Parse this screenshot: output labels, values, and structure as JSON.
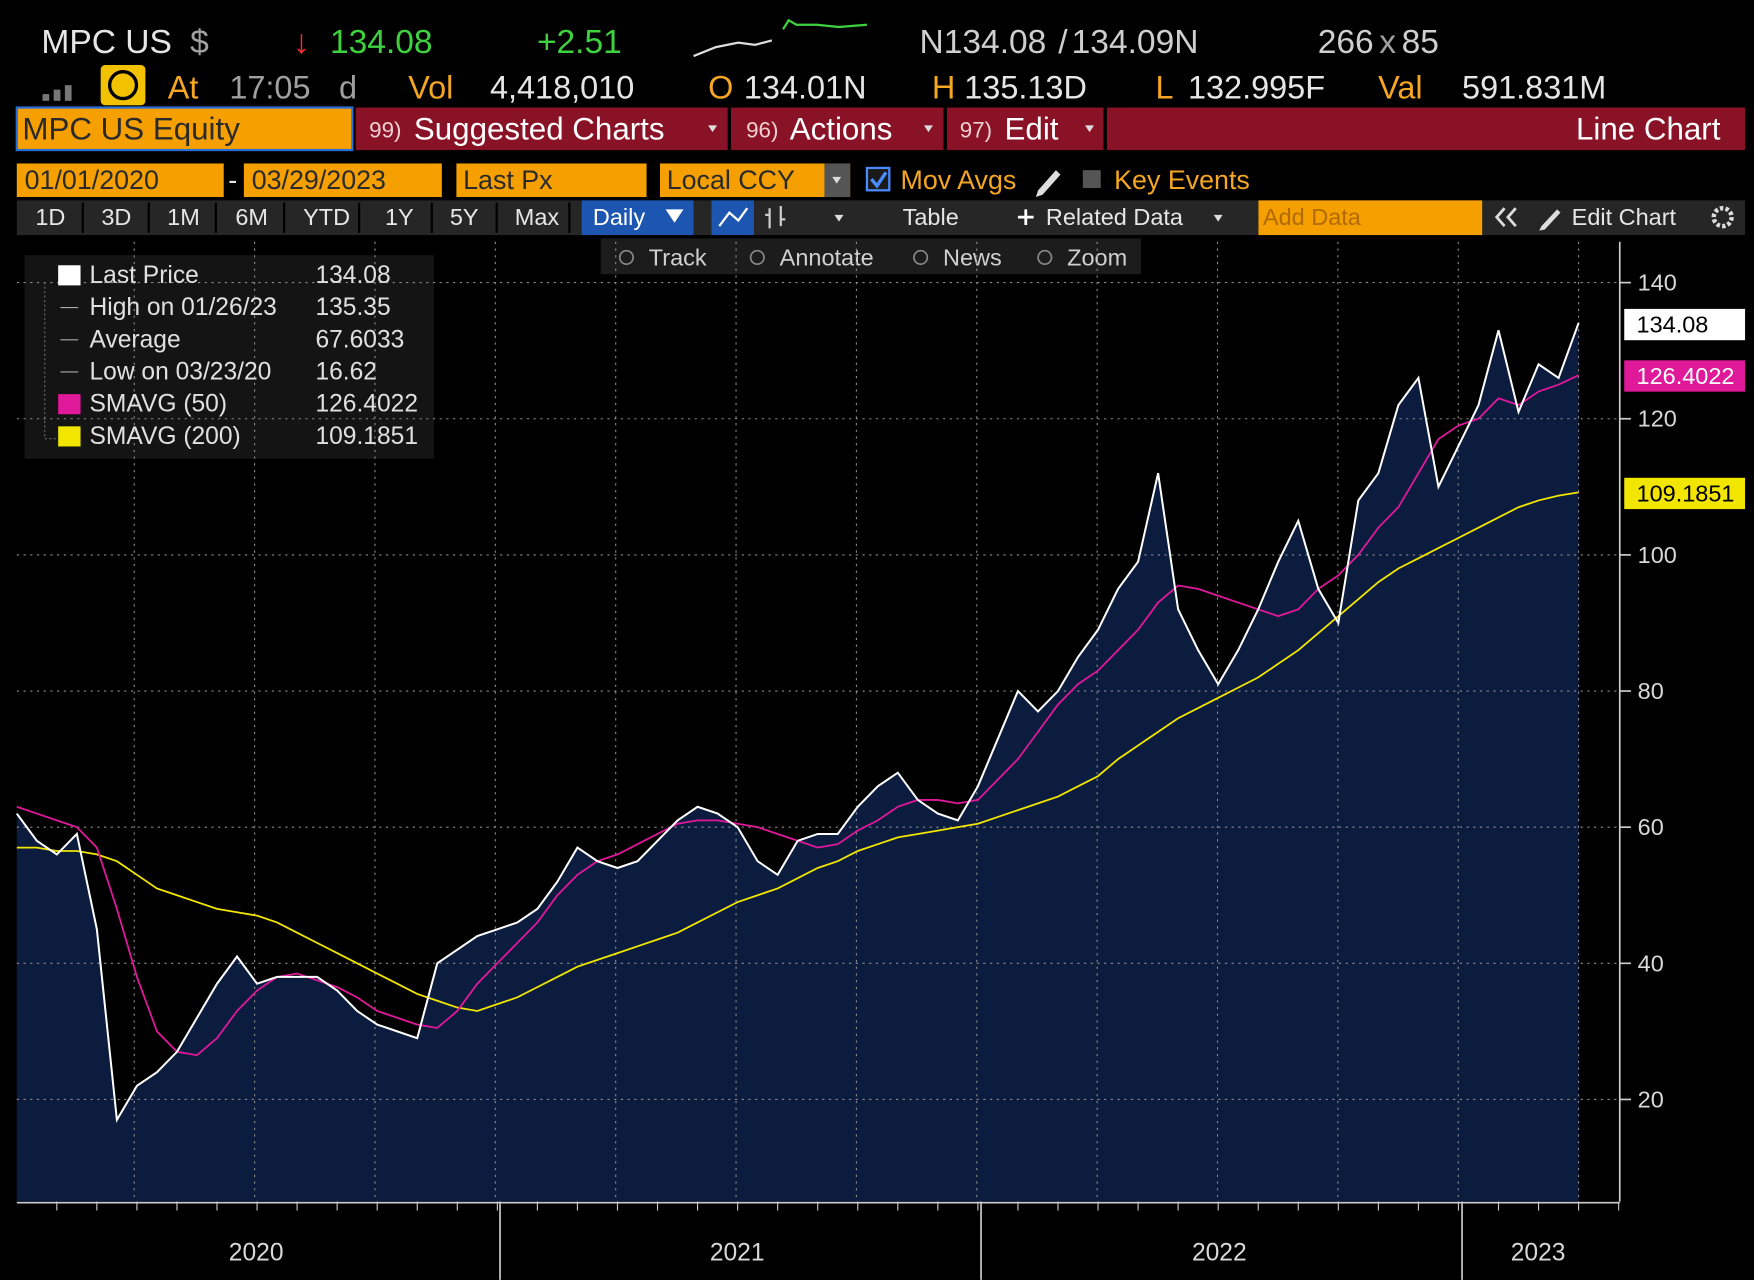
{
  "header": {
    "ticker": "MPC US",
    "currency": "$",
    "arrow": "↓",
    "last": "134.08",
    "change": "+2.51",
    "bid": "N134.08",
    "sep": "/",
    "ask": "134.09N",
    "size_bid": "266",
    "size_x": "x",
    "size_ask": "85"
  },
  "quote": {
    "at": "At",
    "time": "17:05",
    "time_flag": "d",
    "vol_label": "Vol",
    "vol": "4,418,010",
    "open_label": "O",
    "open": "134.01N",
    "high_label": "H",
    "high": "135.13D",
    "low_label": "L",
    "low": "132.995F",
    "val_label": "Val",
    "val": "591.831M"
  },
  "toolbar": {
    "security": "MPC US Equity",
    "menus": [
      {
        "num": "99)",
        "label": "Suggested Charts"
      },
      {
        "num": "96)",
        "label": "Actions"
      },
      {
        "num": "97)",
        "label": "Edit"
      }
    ],
    "chart_type": "Line Chart"
  },
  "settings": {
    "start": "01/01/2020",
    "dash": "-",
    "end": "03/29/2023",
    "field": "Last Px",
    "currency": "Local CCY",
    "mov_avgs": "Mov Avgs",
    "key_events": "Key Events"
  },
  "periods": [
    "1D",
    "3D",
    "1M",
    "6M",
    "YTD",
    "1Y",
    "5Y",
    "Max"
  ],
  "tools": {
    "frequency": "Daily",
    "table": "Table",
    "related": "Related Data",
    "add_data": "Add Data",
    "edit_chart": "Edit Chart"
  },
  "chart_tools": [
    "Track",
    "Annotate",
    "News",
    "Zoom"
  ],
  "chart_data": {
    "type": "line",
    "xlabels": [
      "2020",
      "2021",
      "2022",
      "2023"
    ],
    "ylim": [
      5,
      146
    ],
    "yticks": [
      20,
      40,
      60,
      80,
      100,
      120,
      140
    ],
    "grid": true,
    "area": true,
    "series": [
      {
        "name": "Last Price",
        "color": "#ffffff",
        "values": [
          62,
          58,
          56,
          59,
          45,
          17,
          22,
          24,
          27,
          32,
          37,
          41,
          37,
          38,
          38,
          38,
          36,
          33,
          31,
          30,
          29,
          40,
          42,
          44,
          45,
          46,
          48,
          52,
          57,
          55,
          54,
          55,
          58,
          61,
          63,
          62,
          60,
          55,
          53,
          58,
          59,
          59,
          63,
          66,
          68,
          64,
          62,
          61,
          66,
          73,
          80,
          77,
          80,
          85,
          89,
          95,
          99,
          112,
          92,
          86,
          81,
          86,
          92,
          99,
          105,
          95,
          90,
          108,
          112,
          122,
          126,
          110,
          116,
          122,
          133,
          121,
          128,
          126,
          134.08
        ]
      },
      {
        "name": "SMAVG (50)",
        "color": "#e0189a",
        "values": [
          63,
          62,
          61,
          60,
          57,
          48,
          38,
          30,
          27,
          26.5,
          29,
          33,
          36,
          38,
          38.5,
          37.5,
          36.5,
          35,
          33,
          32,
          31,
          30.5,
          33,
          37,
          40,
          43,
          46,
          50,
          53,
          55,
          56,
          57.5,
          59,
          60.5,
          61,
          61,
          60.5,
          60,
          59,
          58,
          57,
          57.5,
          59.5,
          61,
          63,
          64,
          64,
          63.5,
          64,
          67,
          70,
          74,
          78,
          81,
          83,
          86,
          89,
          93,
          95.5,
          95,
          94,
          93,
          92,
          91,
          92,
          95,
          97,
          100,
          104,
          107,
          112,
          117,
          119,
          120,
          123,
          122,
          124,
          125,
          126.4022
        ]
      },
      {
        "name": "SMAVG (200)",
        "color": "#f2e600",
        "values": [
          57,
          57,
          56.5,
          56.5,
          56,
          55,
          53,
          51,
          50,
          49,
          48,
          47.5,
          47,
          46,
          44.5,
          43,
          41.5,
          40,
          38.5,
          37,
          35.5,
          34.5,
          33.5,
          33,
          34,
          35,
          36.5,
          38,
          39.5,
          40.5,
          41.5,
          42.5,
          43.5,
          44.5,
          46,
          47.5,
          49,
          50,
          51,
          52.5,
          54,
          55,
          56.5,
          57.5,
          58.5,
          59,
          59.5,
          60,
          60.5,
          61.5,
          62.5,
          63.5,
          64.5,
          66,
          67.5,
          70,
          72,
          74,
          76,
          77.5,
          79,
          80.5,
          82,
          84,
          86,
          88.5,
          91,
          93.5,
          96,
          98,
          99.5,
          101,
          102.5,
          104,
          105.5,
          107,
          108,
          108.7,
          109.1851
        ]
      }
    ],
    "legend_stats": [
      {
        "name": "High on 01/26/23",
        "value": 135.35
      },
      {
        "name": "Average",
        "value": 67.6033
      },
      {
        "name": "Low on 03/23/20",
        "value": 16.62
      }
    ]
  }
}
